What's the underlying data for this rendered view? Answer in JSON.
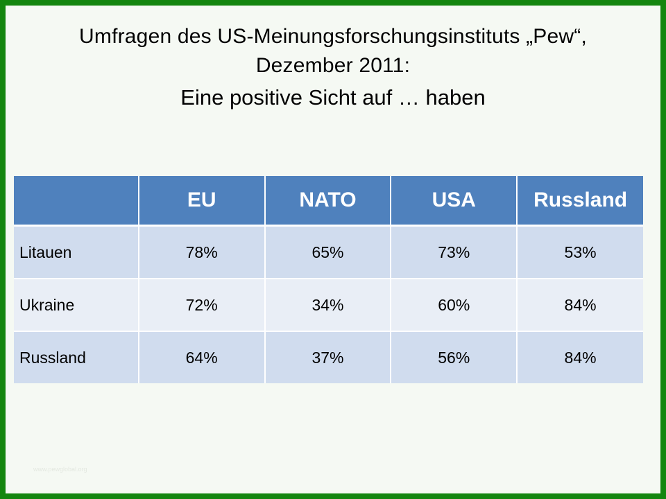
{
  "slide": {
    "title": "Umfragen des US-Meinungsforschungsinstituts „Pew“,",
    "date_line": "Dezember 2011:",
    "subtitle": "Eine positive Sicht auf … haben",
    "border_color": "#14860f",
    "footer": "www.pewglobal.org"
  },
  "table": {
    "corner_header": "",
    "columns": [
      "EU",
      "NATO",
      "USA",
      "Russland"
    ],
    "rows": [
      {
        "label": "Litauen",
        "values": [
          "78%",
          "65%",
          "73%",
          "53%"
        ]
      },
      {
        "label": "Ukraine",
        "values": [
          "72%",
          "34%",
          "60%",
          "84%"
        ]
      },
      {
        "label": "Russland",
        "values": [
          "64%",
          "37%",
          "56%",
          "84%"
        ]
      }
    ],
    "header_color": "#4f81bd",
    "row_colors": [
      "#d0dcee",
      "#e9eef6"
    ]
  }
}
